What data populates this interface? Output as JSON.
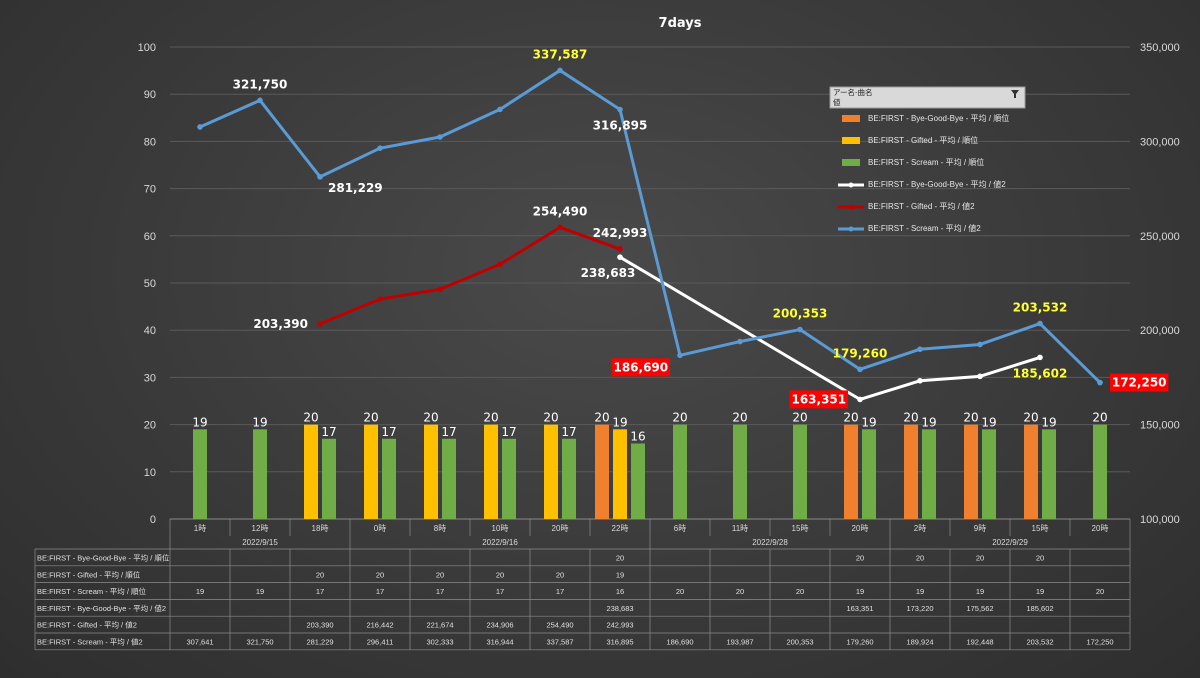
{
  "chart_data": {
    "type": "bar+line",
    "title": "7days",
    "left_axis": {
      "min": 0,
      "max": 100,
      "step": 10
    },
    "right_axis": {
      "min": 100000,
      "max": 350000,
      "step": 50000,
      "tick_labels": [
        "100,000",
        "150,000",
        "200,000",
        "250,000",
        "300,000",
        "350,000"
      ]
    },
    "categories": [
      "1時",
      "12時",
      "18時",
      "0時",
      "8時",
      "10時",
      "20時",
      "22時",
      "6時",
      "11時",
      "15時",
      "20時",
      "2時",
      "9時",
      "15時",
      "20時"
    ],
    "date_groups": [
      {
        "label": "2022/9/15",
        "start": 0,
        "end": 2
      },
      {
        "label": "2022/9/16",
        "start": 3,
        "end": 7
      },
      {
        "label": "2022/9/28",
        "start": 8,
        "end": 11
      },
      {
        "label": "2022/9/29",
        "start": 12,
        "end": 15
      }
    ],
    "series": [
      {
        "name": "BE:FIRST - Bye-Good-Bye - 平均 / 順位",
        "kind": "bar",
        "axis": "left",
        "color": "#f07f2e",
        "values": [
          null,
          null,
          null,
          null,
          null,
          null,
          null,
          20,
          null,
          null,
          null,
          20,
          20,
          20,
          20,
          null
        ]
      },
      {
        "name": "BE:FIRST - Gifted - 平均 / 順位",
        "kind": "bar",
        "axis": "left",
        "color": "#ffc000",
        "values": [
          null,
          null,
          20,
          20,
          20,
          20,
          20,
          19,
          null,
          null,
          null,
          null,
          null,
          null,
          null,
          null
        ]
      },
      {
        "name": "BE:FIRST - Scream - 平均 / 順位",
        "kind": "bar",
        "axis": "left",
        "color": "#70ad47",
        "values": [
          19,
          19,
          17,
          17,
          17,
          17,
          17,
          16,
          20,
          20,
          20,
          19,
          19,
          19,
          19,
          20
        ]
      },
      {
        "name": "BE:FIRST - Bye-Good-Bye - 平均 / 値2",
        "kind": "line",
        "axis": "right",
        "color": "#ffffff",
        "values": [
          null,
          null,
          null,
          null,
          null,
          null,
          null,
          238683,
          null,
          null,
          null,
          163351,
          173220,
          175562,
          185602,
          null
        ]
      },
      {
        "name": "BE:FIRST - Gifted - 平均 / 値2",
        "kind": "line",
        "axis": "right",
        "color": "#c00000",
        "values": [
          null,
          null,
          203390,
          216442,
          221674,
          234906,
          254490,
          242993,
          null,
          null,
          null,
          null,
          null,
          null,
          null,
          null
        ]
      },
      {
        "name": "BE:FIRST - Scream - 平均 / 値2",
        "kind": "line",
        "axis": "right",
        "color": "#5b9bd5",
        "values": [
          307641,
          321750,
          281229,
          296411,
          302333,
          316944,
          337587,
          316895,
          186690,
          193987,
          200353,
          179260,
          189924,
          192448,
          203532,
          172250
        ]
      }
    ],
    "bar_labels": [
      {
        "series": 2,
        "index": 0,
        "text": "19"
      },
      {
        "series": 2,
        "index": 1,
        "text": "19"
      },
      {
        "series": 1,
        "index": 2,
        "text": "20"
      },
      {
        "series": 2,
        "index": 2,
        "text": "17"
      },
      {
        "series": 1,
        "index": 3,
        "text": "20"
      },
      {
        "series": 2,
        "index": 3,
        "text": "17"
      },
      {
        "series": 1,
        "index": 4,
        "text": "20"
      },
      {
        "series": 2,
        "index": 4,
        "text": "17"
      },
      {
        "series": 1,
        "index": 5,
        "text": "20"
      },
      {
        "series": 2,
        "index": 5,
        "text": "17"
      },
      {
        "series": 1,
        "index": 6,
        "text": "20"
      },
      {
        "series": 2,
        "index": 6,
        "text": "17"
      },
      {
        "series": 0,
        "index": 7,
        "text": "20"
      },
      {
        "series": 1,
        "index": 7,
        "text": "19"
      },
      {
        "series": 2,
        "index": 7,
        "text": "16"
      },
      {
        "series": 2,
        "index": 8,
        "text": "20"
      },
      {
        "series": 2,
        "index": 9,
        "text": "20"
      },
      {
        "series": 2,
        "index": 10,
        "text": "20"
      },
      {
        "series": 0,
        "index": 11,
        "text": "20"
      },
      {
        "series": 2,
        "index": 11,
        "text": "19"
      },
      {
        "series": 0,
        "index": 12,
        "text": "20"
      },
      {
        "series": 2,
        "index": 12,
        "text": "19"
      },
      {
        "series": 0,
        "index": 13,
        "text": "20"
      },
      {
        "series": 2,
        "index": 13,
        "text": "19"
      },
      {
        "series": 0,
        "index": 14,
        "text": "20"
      },
      {
        "series": 2,
        "index": 14,
        "text": "19"
      },
      {
        "series": 2,
        "index": 15,
        "text": "20"
      }
    ],
    "line_labels": [
      {
        "text": "321,750",
        "style": "white",
        "x": 1,
        "y": 321750,
        "pos": "above"
      },
      {
        "text": "281,229",
        "style": "white",
        "x": 2,
        "y": 281229,
        "pos": "right-below"
      },
      {
        "text": "337,587",
        "style": "yellow",
        "x": 6,
        "y": 337587,
        "pos": "above"
      },
      {
        "text": "316,895",
        "style": "white",
        "x": 7,
        "y": 316895,
        "pos": "below"
      },
      {
        "text": "254,490",
        "style": "white",
        "x": 6,
        "y": 254490,
        "pos": "above-right"
      },
      {
        "text": "242,993",
        "style": "white",
        "x": 7,
        "y": 242993,
        "pos": "above-right"
      },
      {
        "text": "238,683",
        "style": "white",
        "x": 7,
        "y": 238683,
        "pos": "below-left"
      },
      {
        "text": "203,390",
        "style": "white",
        "x": 2,
        "y": 203390,
        "pos": "left"
      },
      {
        "text": "186,690",
        "style": "redbox",
        "x": 8,
        "y": 186690,
        "pos": "left-below"
      },
      {
        "text": "200,353",
        "style": "yellow",
        "x": 10,
        "y": 200353,
        "pos": "above"
      },
      {
        "text": "179,260",
        "style": "yellow",
        "x": 11,
        "y": 179260,
        "pos": "above"
      },
      {
        "text": "163,351",
        "style": "redbox",
        "x": 11,
        "y": 163351,
        "pos": "left"
      },
      {
        "text": "203,532",
        "style": "yellow",
        "x": 14,
        "y": 203532,
        "pos": "above"
      },
      {
        "text": "185,602",
        "style": "yellow",
        "x": 14,
        "y": 185602,
        "pos": "below"
      },
      {
        "text": "172,250",
        "style": "redbox",
        "x": 15,
        "y": 172250,
        "pos": "right"
      }
    ],
    "legend_filter": {
      "header": "アー名-曲名",
      "sub": "値"
    },
    "legend_placement": "top-right",
    "table_rows": [
      {
        "label": "BE:FIRST - Bye-Good-Bye - 平均 / 順位",
        "cells": [
          "",
          "",
          "",
          "",
          "",
          "",
          "",
          "20",
          "",
          "",
          "",
          "20",
          "20",
          "20",
          "20",
          ""
        ]
      },
      {
        "label": "BE:FIRST - Gifted - 平均 / 順位",
        "cells": [
          "",
          "",
          "20",
          "20",
          "20",
          "20",
          "20",
          "19",
          "",
          "",
          "",
          "",
          "",
          "",
          "",
          ""
        ]
      },
      {
        "label": "BE:FIRST - Scream - 平均 / 順位",
        "cells": [
          "19",
          "19",
          "17",
          "17",
          "17",
          "17",
          "17",
          "16",
          "20",
          "20",
          "20",
          "19",
          "19",
          "19",
          "19",
          "20"
        ]
      },
      {
        "label": "BE:FIRST - Bye-Good-Bye - 平均 / 値2",
        "cells": [
          "",
          "",
          "",
          "",
          "",
          "",
          "",
          "238,683",
          "",
          "",
          "",
          "163,351",
          "173,220",
          "175,562",
          "185,602",
          ""
        ]
      },
      {
        "label": "BE:FIRST - Gifted - 平均 / 値2",
        "cells": [
          "",
          "",
          "203,390",
          "216,442",
          "221,674",
          "234,906",
          "254,490",
          "242,993",
          "",
          "",
          "",
          "",
          "",
          "",
          "",
          ""
        ]
      },
      {
        "label": "BE:FIRST - Scream - 平均 / 値2",
        "cells": [
          "307,641",
          "321,750",
          "281,229",
          "296,411",
          "302,333",
          "316,944",
          "337,587",
          "316,895",
          "186,690",
          "193,987",
          "200,353",
          "179,260",
          "189,924",
          "192,448",
          "203,532",
          "172,250"
        ]
      }
    ],
    "grid": true
  }
}
